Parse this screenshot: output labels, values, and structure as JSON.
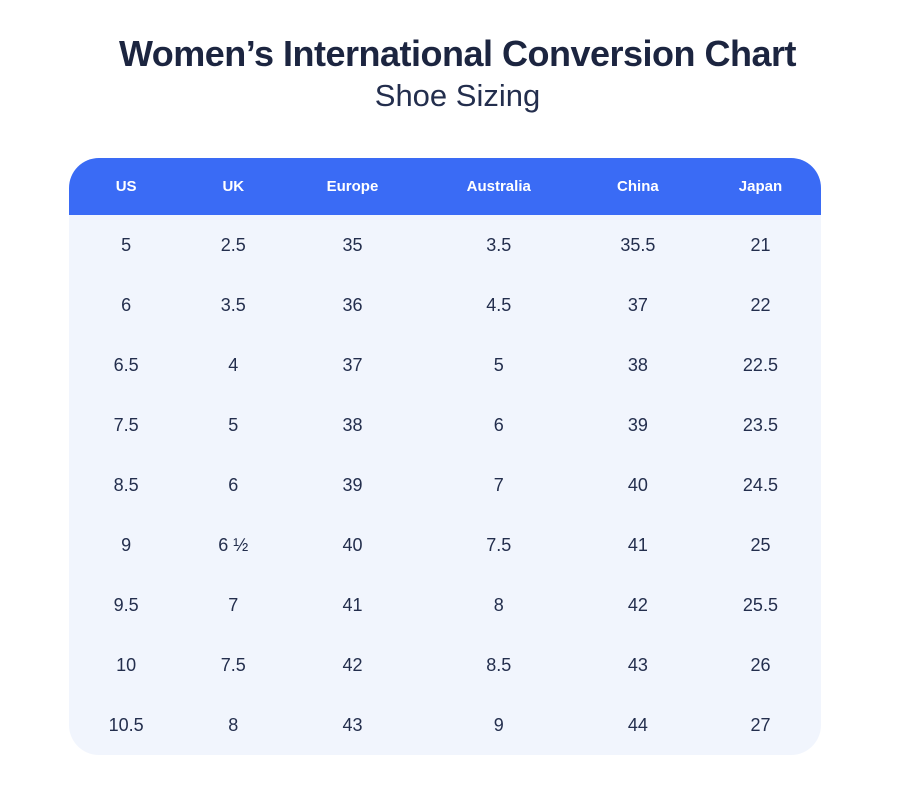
{
  "page": {
    "title": "Women’s International Conversion Chart",
    "subtitle": "Shoe Sizing"
  },
  "colors": {
    "header_bg": "#3A6BF5",
    "body_bg": "#F1F5FD",
    "cell_text": "#232E4D",
    "title_text": "#1C2540",
    "header_text": "#FFFFFF"
  },
  "chart_data": {
    "type": "table",
    "title": "Women’s International Conversion Chart",
    "subtitle": "Shoe Sizing",
    "columns": [
      "US",
      "UK",
      "Europe",
      "Australia",
      "China",
      "Japan"
    ],
    "rows": [
      [
        "5",
        "2.5",
        "35",
        "3.5",
        "35.5",
        "21"
      ],
      [
        "6",
        "3.5",
        "36",
        "4.5",
        "37",
        "22"
      ],
      [
        "6.5",
        "4",
        "37",
        "5",
        "38",
        "22.5"
      ],
      [
        "7.5",
        "5",
        "38",
        "6",
        "39",
        "23.5"
      ],
      [
        "8.5",
        "6",
        "39",
        "7",
        "40",
        "24.5"
      ],
      [
        "9",
        "6 ½",
        "40",
        "7.5",
        "41",
        "25"
      ],
      [
        "9.5",
        "7",
        "41",
        "8",
        "42",
        "25.5"
      ],
      [
        "10",
        "7.5",
        "42",
        "8.5",
        "43",
        "26"
      ],
      [
        "10.5",
        "8",
        "43",
        "9",
        "44",
        "27"
      ]
    ]
  }
}
